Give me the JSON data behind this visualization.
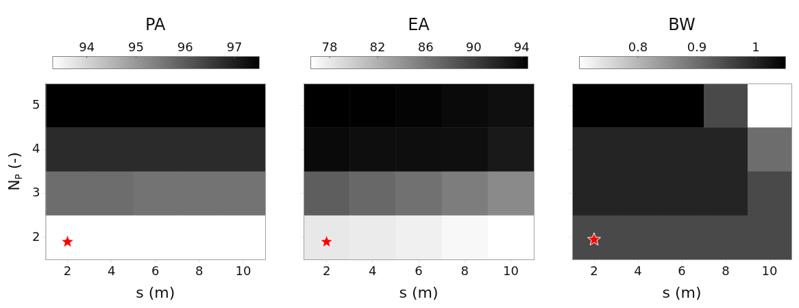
{
  "chart_data": [
    {
      "type": "heatmap",
      "title": "PA",
      "xlabel": "s (m)",
      "ylabel": "N$_{P}$ (-)",
      "categories": [
        "2",
        "4",
        "6",
        "8",
        "10"
      ],
      "y_categories": [
        "5",
        "4",
        "3",
        "2"
      ],
      "cells": [
        [
          97.5,
          97.5,
          97.5,
          97.5,
          97.5
        ],
        [
          96.8,
          96.8,
          96.8,
          96.8,
          96.8
        ],
        [
          95.7,
          95.7,
          95.6,
          95.6,
          95.6
        ],
        [
          93.3,
          93.3,
          93.3,
          93.3,
          93.3
        ]
      ],
      "clim": [
        93.3,
        97.5
      ],
      "cticks": [
        94,
        95,
        96,
        97
      ],
      "series": [
        {
          "type": "scatter",
          "marker": "star",
          "color": "#ff0000",
          "values": [
            3.1,
            null,
            null,
            null,
            null
          ]
        }
      ]
    },
    {
      "type": "heatmap",
      "title": "EA",
      "xlabel": "s (m)",
      "categories": [
        "2",
        "4",
        "6",
        "8",
        "10"
      ],
      "y_categories": [
        "5",
        "4",
        "3",
        "2"
      ],
      "cells": [
        [
          94.5,
          94.4,
          94.2,
          93.8,
          93.4
        ],
        [
          93.8,
          93.5,
          93.5,
          93.4,
          92.7
        ],
        [
          87.8,
          87.1,
          86.5,
          85.6,
          84.7
        ],
        [
          78.0,
          77.8,
          77.5,
          76.9,
          76.4
        ]
      ],
      "clim": [
        76.4,
        94.5
      ],
      "cticks": [
        78,
        82,
        86,
        90,
        94
      ],
      "tick_labels": "x",
      "series": [
        {
          "type": "scatter",
          "marker": "star",
          "color": "#ff0000",
          "values": [
            3.1,
            null,
            null,
            null,
            null
          ]
        }
      ]
    },
    {
      "type": "heatmap",
      "title": "BW",
      "xlabel": "s (m)",
      "categories": [
        "2",
        "4",
        "6",
        "8",
        "10"
      ],
      "y_categories": [
        "5",
        "4",
        "3",
        "2"
      ],
      "cells": [
        [
          1.05,
          1.05,
          1.05,
          0.95,
          0.7
        ],
        [
          1.0,
          1.0,
          1.0,
          1.0,
          0.9
        ],
        [
          1.0,
          1.0,
          1.0,
          1.0,
          0.95
        ],
        [
          0.95,
          0.95,
          0.95,
          0.95,
          0.95
        ]
      ],
      "clim": [
        0.7,
        1.05
      ],
      "cticks": [
        0.8,
        0.9,
        1
      ],
      "tick_labels": "x",
      "series": [
        {
          "type": "scatter",
          "marker": "star",
          "color": "#ff0000",
          "values": [
            3.05,
            null,
            null,
            null,
            null
          ]
        }
      ]
    }
  ]
}
